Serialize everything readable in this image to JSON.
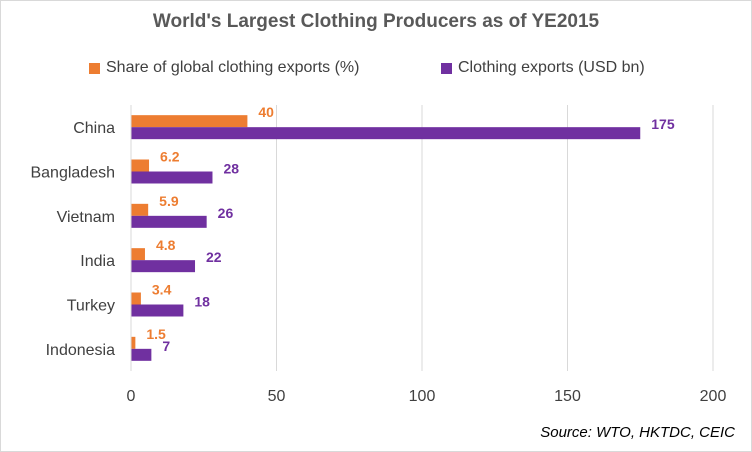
{
  "colors": {
    "share": "#ed7d31",
    "exports": "#7030a0",
    "grid": "#d9d9d9"
  },
  "source": "Source: WTO, HKTDC, CEIC",
  "chart_data": {
    "type": "bar",
    "orientation": "horizontal",
    "title": "World's Largest Clothing Producers as of YE2015",
    "categories": [
      "China",
      "Bangladesh",
      "Vietnam",
      "India",
      "Turkey",
      "Indonesia"
    ],
    "series": [
      {
        "name": "Share of global clothing exports (%)",
        "values": [
          40,
          6.2,
          5.9,
          4.8,
          3.4,
          1.5
        ],
        "labels": [
          "40",
          "6.2",
          "5.9",
          "4.8",
          "3.4",
          "1.5"
        ]
      },
      {
        "name": "Clothing exports (USD bn)",
        "values": [
          175,
          28,
          26,
          22,
          18,
          7
        ],
        "labels": [
          "175",
          "28",
          "26",
          "22",
          "18",
          "7"
        ]
      }
    ],
    "xlim": [
      0,
      200
    ],
    "xticks": [
      0,
      50,
      100,
      150,
      200
    ],
    "xtick_labels": [
      "0",
      "50",
      "100",
      "150",
      "200"
    ],
    "grid": true,
    "legend": "top"
  }
}
